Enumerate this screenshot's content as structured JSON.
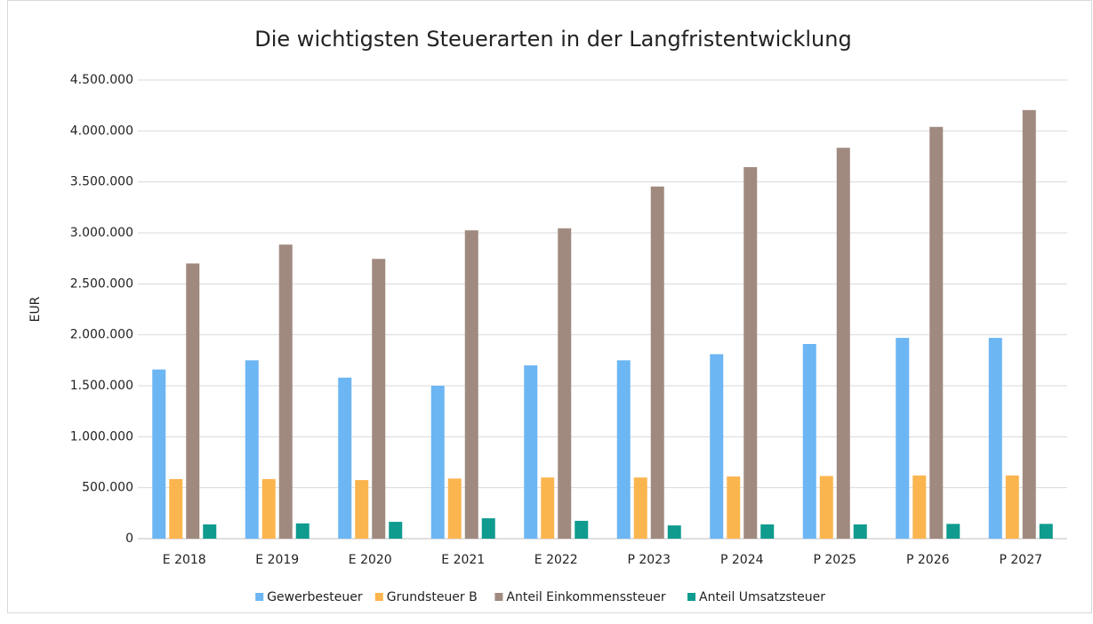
{
  "chart_data": {
    "type": "bar",
    "title": "Die wichtigsten Steuerarten in der Langfristentwicklung",
    "y_label": "EUR",
    "categories": [
      "E 2018",
      "E 2019",
      "E 2020",
      "E 2021",
      "E 2022",
      "P 2023",
      "P 2024",
      "P 2025",
      "P 2026",
      "P 2027"
    ],
    "series": [
      {
        "name": "Gewerbesteuer",
        "color": "#6cb6f3",
        "values": [
          1660000,
          1750000,
          1580000,
          1500000,
          1700000,
          1750000,
          1810000,
          1910000,
          1970000,
          1970000
        ]
      },
      {
        "name": "Grundsteuer B",
        "color": "#fbb54f",
        "values": [
          585000,
          585000,
          575000,
          590000,
          600000,
          600000,
          610000,
          615000,
          620000,
          620000
        ]
      },
      {
        "name": "Anteil Einkommenssteuer",
        "color": "#a08a7f",
        "values": [
          2700000,
          2885000,
          2745000,
          3025000,
          3045000,
          3455000,
          3645000,
          3835000,
          4040000,
          4205000
        ]
      },
      {
        "name": "Anteil Umsatzsteuer",
        "color": "#0f9b8e",
        "values": [
          140000,
          150000,
          165000,
          200000,
          175000,
          130000,
          140000,
          140000,
          145000,
          145000
        ]
      }
    ],
    "ylim": [
      0,
      4500000
    ],
    "yticks": [
      0,
      {
        "value": 500000,
        "label": "500.000"
      },
      {
        "value": 1000000,
        "label": "1.000.000"
      },
      {
        "value": 1500000,
        "label": "1.500.000"
      },
      {
        "value": 2000000,
        "label": "2.000.000"
      },
      {
        "value": 2500000,
        "label": "2.500.000"
      },
      {
        "value": 3000000,
        "label": "3.000.000"
      },
      {
        "value": 3500000,
        "label": "3.500.000"
      },
      {
        "value": 4000000,
        "label": "4.000.000"
      },
      {
        "value": 4500000,
        "label": "4.500.000"
      }
    ],
    "grid": true,
    "legend": "bottom"
  }
}
